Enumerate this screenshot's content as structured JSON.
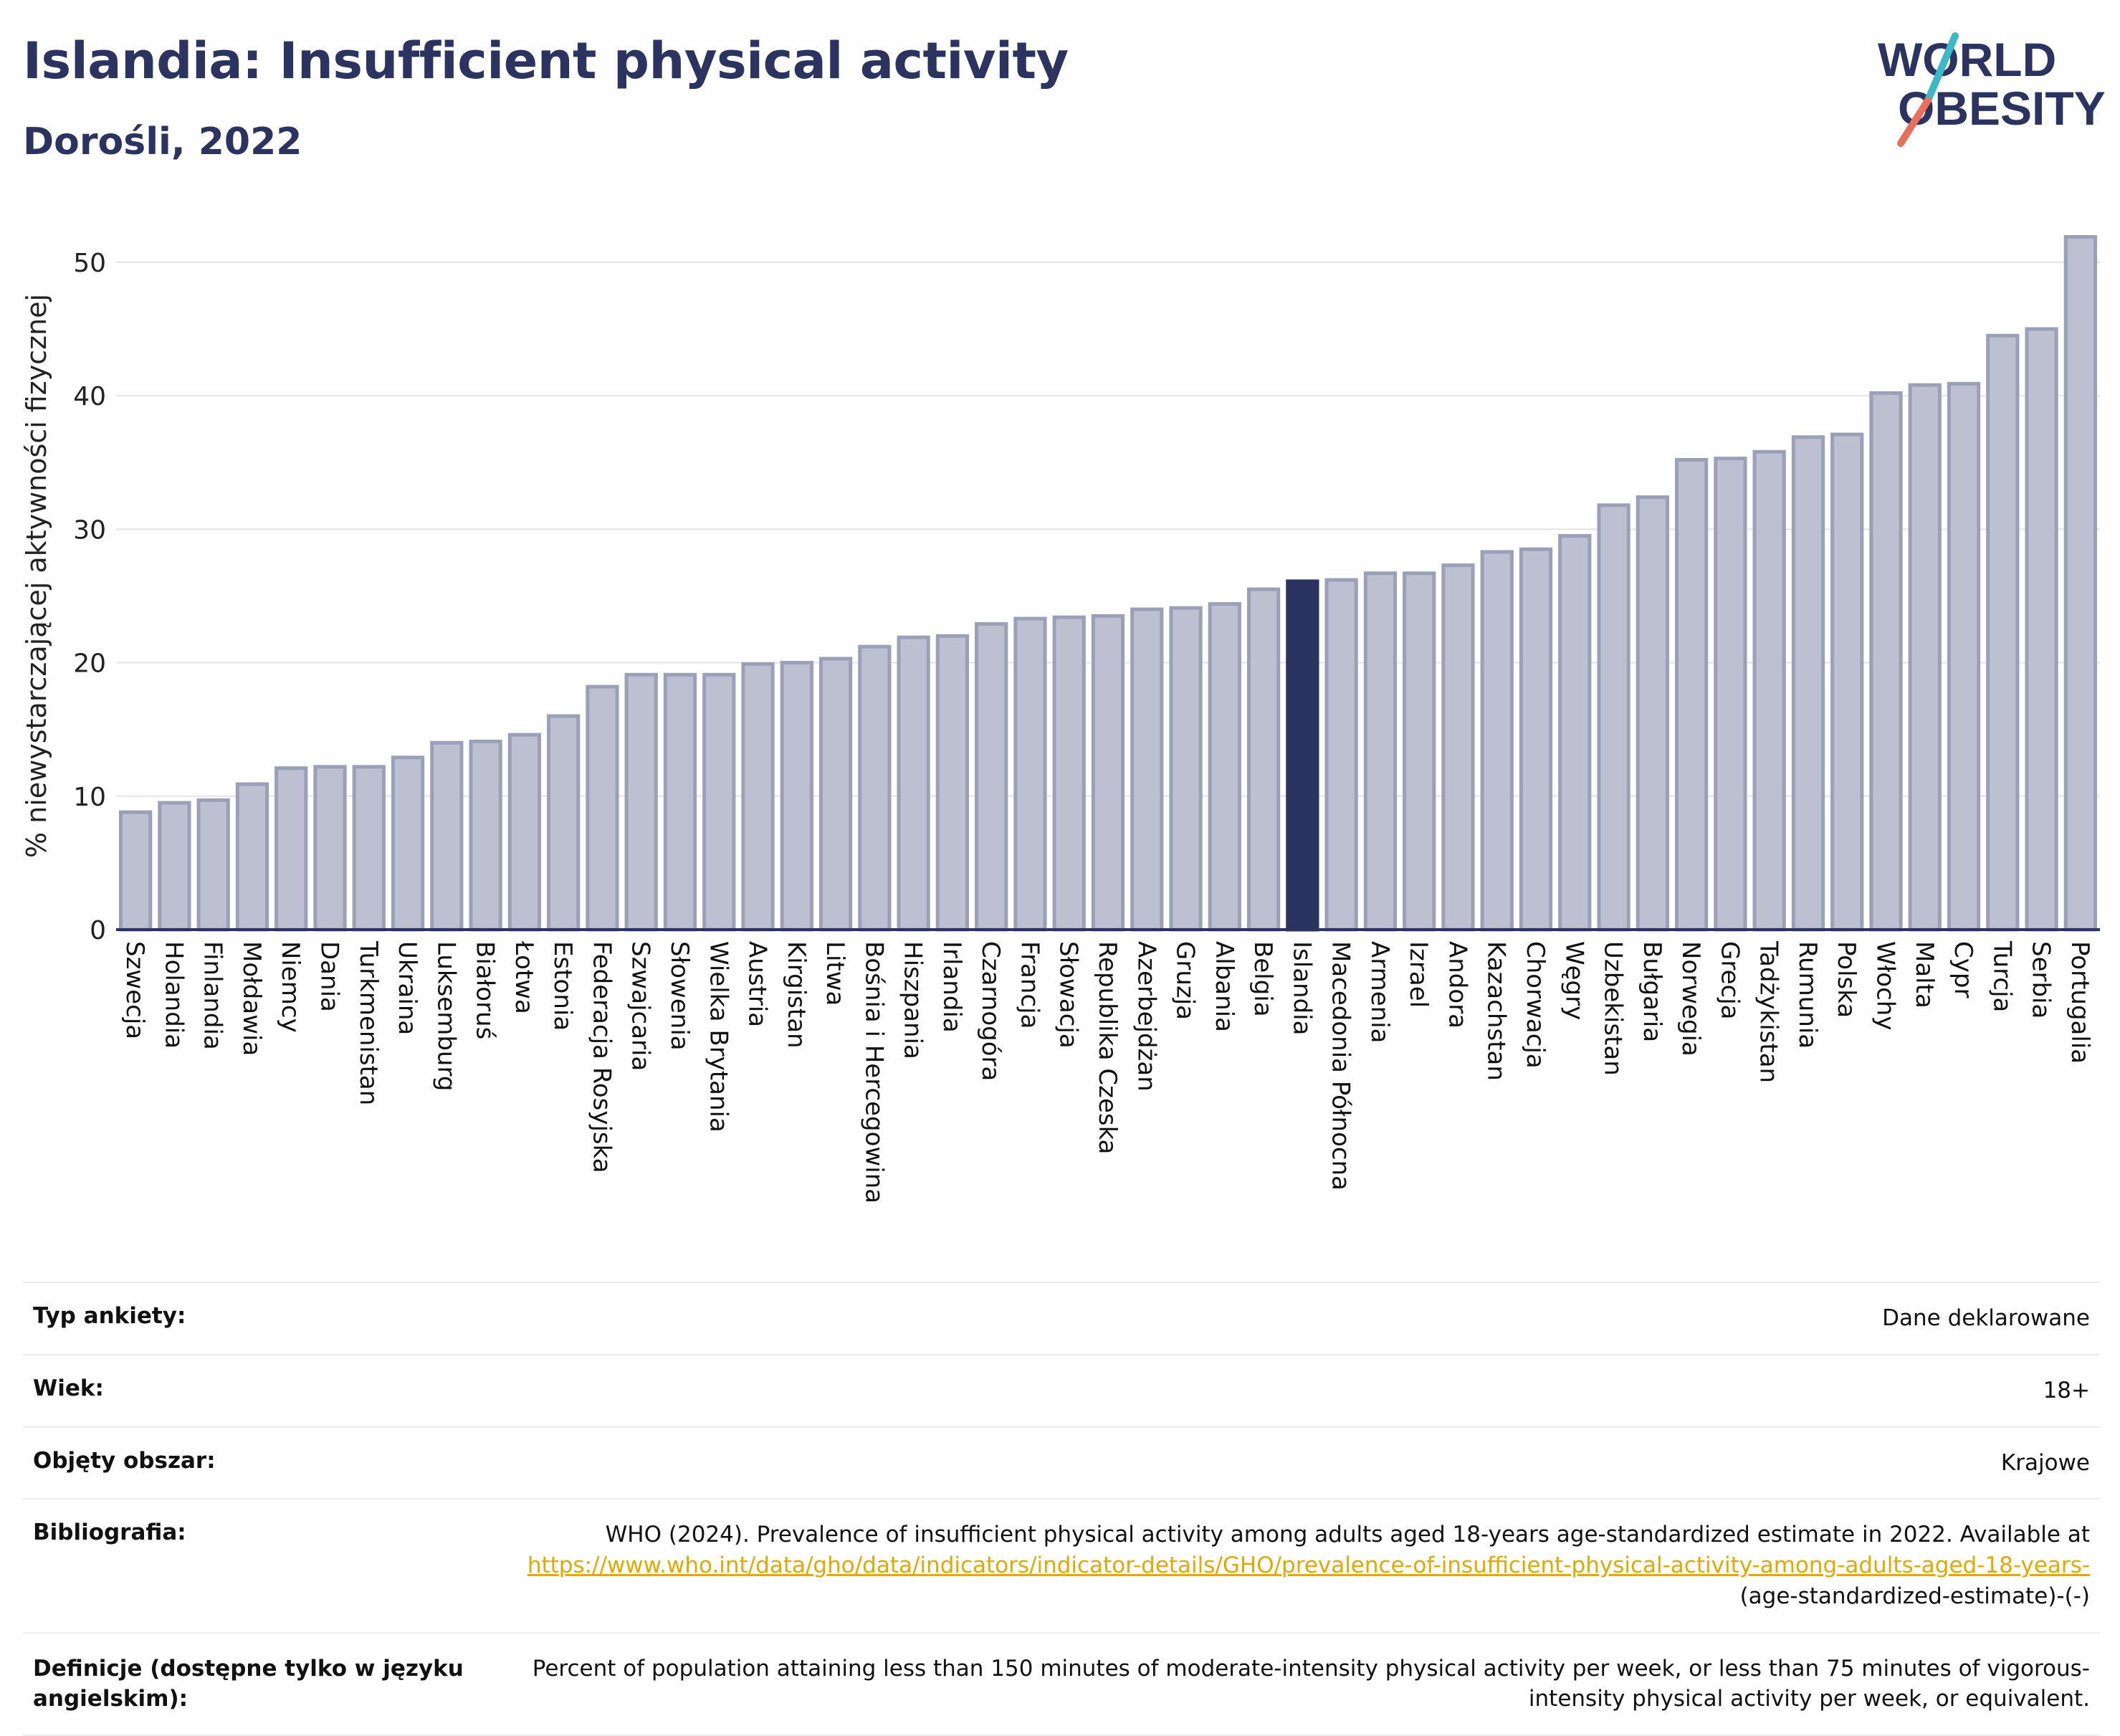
{
  "header": {
    "title": "Islandia: Insufficient physical activity",
    "subtitle": "Dorośli, 2022"
  },
  "logo": {
    "line1": "WORLD",
    "line2": "OBESITY",
    "text_color": "#2b3360",
    "slash_colors": [
      "#3bb9c4",
      "#e8705a"
    ]
  },
  "colors": {
    "bar_default": "#bcc0d0",
    "bar_default_stroke": "#9aa0b8",
    "bar_highlight": "#2b3360",
    "axis": "#2b3360",
    "grid": "#e3e3e8"
  },
  "chart_data": {
    "type": "bar",
    "title": "",
    "ylabel": "% niewystarczającej aktywności fizycznej",
    "xlabel": "",
    "ylim": [
      0,
      53
    ],
    "yticks": [
      0,
      10,
      20,
      30,
      40,
      50
    ],
    "grid": true,
    "highlight": "Islandia",
    "categories": [
      "Szwecja",
      "Holandia",
      "Finlandia",
      "Mołdawia",
      "Niemcy",
      "Dania",
      "Turkmenistan",
      "Ukraina",
      "Luksemburg",
      "Białoruś",
      "Łotwa",
      "Estonia",
      "Federacja Rosyjska",
      "Szwajcaria",
      "Słowenia",
      "Wielka Brytania",
      "Austria",
      "Kirgistan",
      "Litwa",
      "Bośnia i Hercegowina",
      "Hiszpania",
      "Irlandia",
      "Czarnogóra",
      "Francja",
      "Słowacja",
      "Republika Czeska",
      "Azerbejdżan",
      "Gruzja",
      "Albania",
      "Belgia",
      "Islandia",
      "Macedonia Północna",
      "Armenia",
      "Izrael",
      "Andora",
      "Kazachstan",
      "Chorwacja",
      "Węgry",
      "Uzbekistan",
      "Bułgaria",
      "Norwegia",
      "Grecja",
      "Tadżykistan",
      "Rumunia",
      "Polska",
      "Włochy",
      "Malta",
      "Cypr",
      "Turcja",
      "Serbia",
      "Portugalia"
    ],
    "values": [
      8.8,
      9.5,
      9.7,
      10.9,
      12.1,
      12.2,
      12.2,
      12.9,
      14.0,
      14.1,
      14.6,
      16.0,
      18.2,
      19.1,
      19.1,
      19.1,
      19.9,
      20.0,
      20.3,
      21.2,
      21.9,
      22.0,
      22.9,
      23.3,
      23.4,
      23.5,
      24.0,
      24.1,
      24.4,
      25.5,
      26.1,
      26.2,
      26.7,
      26.7,
      27.3,
      28.3,
      28.5,
      29.5,
      31.8,
      32.4,
      35.2,
      35.3,
      35.8,
      36.9,
      37.1,
      40.2,
      40.8,
      40.9,
      44.5,
      45.0,
      51.9
    ]
  },
  "info": {
    "survey_label": "Typ ankiety:",
    "survey_value": "Dane deklarowane",
    "age_label": "Wiek:",
    "age_value": "18+",
    "area_label": "Objęty obszar:",
    "area_value": "Krajowe",
    "bib_label": "Bibliografia:",
    "bib_text": "WHO (2024). Prevalence of insufficient physical activity among adults aged 18-years age-standardized estimate in 2022. Available at",
    "bib_link": "https://www.who.int/data/gho/data/indicators/indicator-details/GHO/prevalence-of-insufficient-physical-activity-among-adults-aged-18-years-",
    "bib_suffix": "(age-standardized-estimate)-(-)",
    "def_label": "Definicje (dostępne tylko w języku angielskim):",
    "def_text": "Percent of population attaining less than 150 minutes of moderate-intensity physical activity per week, or less than 75 minutes of vigorous-intensity physical activity per week, or equivalent."
  }
}
